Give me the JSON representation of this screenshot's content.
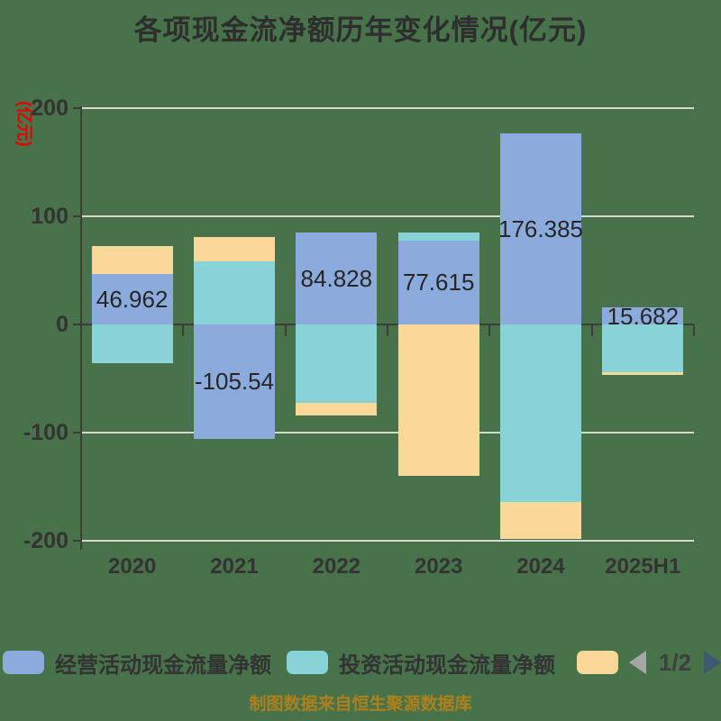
{
  "chart_data": {
    "type": "bar",
    "stacked": true,
    "title": "各项现金流净额历年变化情况(亿元)",
    "y_axis_name": "(亿元)",
    "ylim": [
      -200,
      200
    ],
    "y_ticks": [
      200,
      100,
      0,
      -100,
      -200
    ],
    "grid": true,
    "legend_position": "bottom",
    "categories": [
      "2020",
      "2021",
      "2022",
      "2023",
      "2024",
      "2025H1"
    ],
    "series": [
      {
        "name": "经营活动现金流量净额",
        "color": "#8cabdd",
        "values": [
          46.962,
          -105.54,
          84.828,
          77.615,
          176.385,
          15.682
        ],
        "data_labels": [
          "46.962",
          "-105.54",
          "84.828",
          "77.615",
          "176.385",
          "15.682"
        ]
      },
      {
        "name": "投资活动现金流量净额",
        "color": "#87d3d7",
        "values": [
          -36,
          58.3,
          -72.5,
          7.4,
          -164,
          -44
        ]
      },
      {
        "name": "",
        "color": "#fad898",
        "values": [
          25.5,
          22.5,
          -11.7,
          -140,
          -34,
          -2.5
        ]
      }
    ]
  },
  "legend": {
    "items": [
      {
        "label": "经营活动现金流量净额",
        "color": "#8cabdd"
      },
      {
        "label": "投资活动现金流量净额",
        "color": "#87d3d7"
      },
      {
        "label": "",
        "color": "#fad898"
      }
    ],
    "pagination": {
      "page": "1/2"
    }
  },
  "footer": {
    "source": "制图数据来自恒生聚源数据库"
  },
  "colors": {
    "background": "#47724a",
    "axis_line": "#3d3d3d",
    "gridline": "#d6d6d6",
    "tick_text": "#333333",
    "bar_label_text": "#262626",
    "y_axis_name": "#e60000",
    "footer_text": "#ad801c",
    "pager_prev": "#a6a6a6",
    "pager_next": "#3c5872"
  }
}
